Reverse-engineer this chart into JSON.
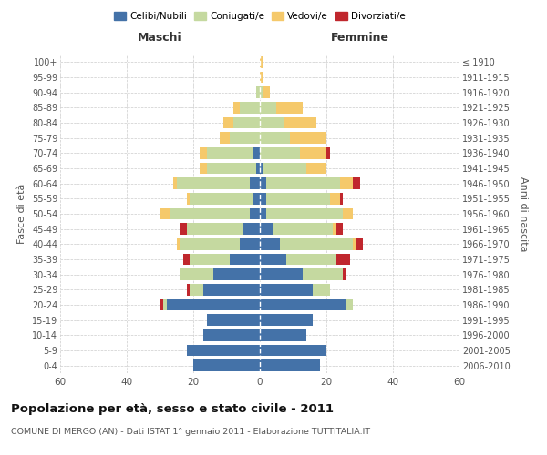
{
  "age_groups": [
    "0-4",
    "5-9",
    "10-14",
    "15-19",
    "20-24",
    "25-29",
    "30-34",
    "35-39",
    "40-44",
    "45-49",
    "50-54",
    "55-59",
    "60-64",
    "65-69",
    "70-74",
    "75-79",
    "80-84",
    "85-89",
    "90-94",
    "95-99",
    "100+"
  ],
  "birth_years": [
    "2006-2010",
    "2001-2005",
    "1996-2000",
    "1991-1995",
    "1986-1990",
    "1981-1985",
    "1976-1980",
    "1971-1975",
    "1966-1970",
    "1961-1965",
    "1956-1960",
    "1951-1955",
    "1946-1950",
    "1941-1945",
    "1936-1940",
    "1931-1935",
    "1926-1930",
    "1921-1925",
    "1916-1920",
    "1911-1915",
    "≤ 1910"
  ],
  "male": {
    "celibi": [
      20,
      22,
      17,
      16,
      28,
      17,
      14,
      9,
      6,
      5,
      3,
      2,
      3,
      1,
      2,
      0,
      0,
      0,
      0,
      0,
      0
    ],
    "coniugati": [
      0,
      0,
      0,
      0,
      1,
      4,
      10,
      12,
      18,
      17,
      24,
      19,
      22,
      15,
      14,
      9,
      8,
      6,
      1,
      0,
      0
    ],
    "vedovi": [
      0,
      0,
      0,
      0,
      0,
      0,
      0,
      0,
      1,
      0,
      3,
      1,
      1,
      2,
      2,
      3,
      3,
      2,
      0,
      0,
      0
    ],
    "divorziati": [
      0,
      0,
      0,
      0,
      1,
      1,
      0,
      2,
      0,
      2,
      0,
      0,
      0,
      0,
      0,
      0,
      0,
      0,
      0,
      0,
      0
    ]
  },
  "female": {
    "nubili": [
      18,
      20,
      14,
      16,
      26,
      16,
      13,
      8,
      6,
      4,
      2,
      2,
      2,
      1,
      0,
      0,
      0,
      0,
      0,
      0,
      0
    ],
    "coniugate": [
      0,
      0,
      0,
      0,
      2,
      5,
      12,
      15,
      22,
      18,
      23,
      19,
      22,
      13,
      12,
      9,
      7,
      5,
      1,
      0,
      0
    ],
    "vedove": [
      0,
      0,
      0,
      0,
      0,
      0,
      0,
      0,
      1,
      1,
      3,
      3,
      4,
      6,
      8,
      11,
      10,
      8,
      2,
      1,
      1
    ],
    "divorziate": [
      0,
      0,
      0,
      0,
      0,
      0,
      1,
      4,
      2,
      2,
      0,
      1,
      2,
      0,
      1,
      0,
      0,
      0,
      0,
      0,
      0
    ]
  },
  "colors": {
    "celibi": "#4472a8",
    "coniugati": "#c5d9a0",
    "vedovi": "#f5c96b",
    "divorziati": "#c0272d"
  },
  "xlim": 60,
  "title": "Popolazione per età, sesso e stato civile - 2011",
  "subtitle": "COMUNE DI MERGO (AN) - Dati ISTAT 1° gennaio 2011 - Elaborazione TUTTITALIA.IT",
  "ylabel_left": "Fasce di età",
  "ylabel_right": "Anni di nascita",
  "xlabel_left": "Maschi",
  "xlabel_right": "Femmine"
}
